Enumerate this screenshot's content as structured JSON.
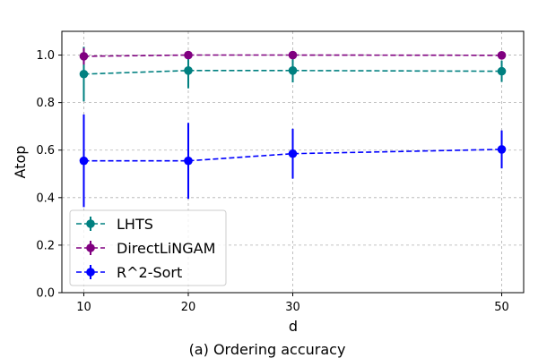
{
  "chart_data": {
    "type": "line",
    "title": "",
    "caption": "(a) Ordering accuracy",
    "xlabel": "d",
    "ylabel": "Atop",
    "x": [
      10,
      20,
      30,
      50
    ],
    "xlim": [
      7.9,
      52.1
    ],
    "ylim": [
      0.0,
      1.1
    ],
    "xticks": [
      10,
      20,
      30,
      50
    ],
    "xtick_labels": [
      "10",
      "20",
      "30",
      "50"
    ],
    "yticks": [
      0.0,
      0.2,
      0.4,
      0.6,
      0.8,
      1.0
    ],
    "ytick_labels": [
      "0.0",
      "0.2",
      "0.4",
      "0.6",
      "0.8",
      "1.0"
    ],
    "grid": true,
    "legend_position": "lower-left",
    "series": [
      {
        "name": "LHTS",
        "color": "#008080",
        "values": [
          0.92,
          0.935,
          0.935,
          0.932
        ],
        "errors": [
          0.115,
          0.075,
          0.05,
          0.045
        ]
      },
      {
        "name": "DirectLiNGAM",
        "color": "#800080",
        "values": [
          0.995,
          1.0,
          1.0,
          0.999
        ],
        "errors": [
          0.035,
          0.006,
          0.004,
          0.004
        ]
      },
      {
        "name": "R^2-Sort",
        "color": "#0000ff",
        "values": [
          0.555,
          0.555,
          0.585,
          0.603
        ],
        "errors": [
          0.195,
          0.16,
          0.105,
          0.08
        ]
      }
    ]
  }
}
